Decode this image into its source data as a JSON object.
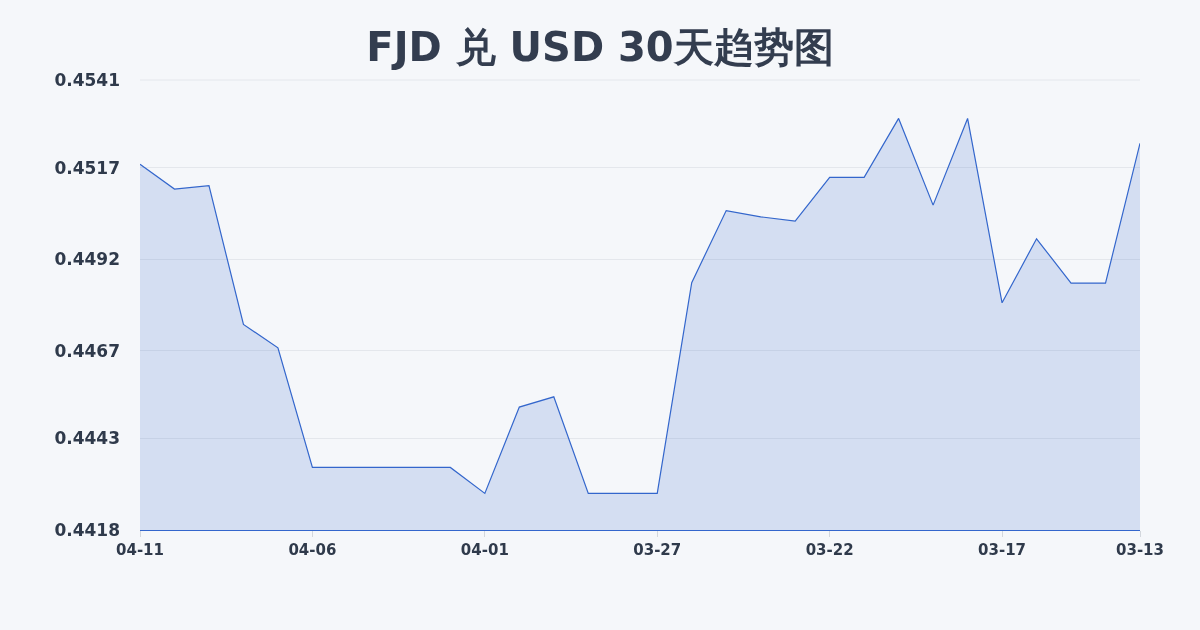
{
  "chart_data": {
    "type": "area",
    "title": "FJD 兑 USD 30天趋势图",
    "categories": [
      "04-11",
      null,
      null,
      null,
      null,
      "04-06",
      null,
      null,
      null,
      null,
      "04-01",
      null,
      null,
      null,
      null,
      "03-27",
      null,
      null,
      null,
      null,
      "03-22",
      null,
      null,
      null,
      null,
      "03-17",
      null,
      null,
      null,
      "03-13"
    ],
    "values": [
      0.4518,
      0.45112,
      0.45121,
      0.44742,
      0.44678,
      0.44351,
      0.44351,
      0.44351,
      0.44351,
      0.44351,
      0.4428,
      0.44516,
      0.44544,
      0.4428,
      0.4428,
      0.4428,
      0.44856,
      0.45053,
      0.45036,
      0.45024,
      0.45144,
      0.45144,
      0.45305,
      0.45068,
      0.45305,
      0.44801,
      0.44976,
      0.44855,
      0.44855,
      0.45237
    ],
    "color": "#3366cc",
    "ylim": [
      0.4418,
      0.4541
    ],
    "yticks": [
      0.4418,
      0.4443,
      0.4467,
      0.4492,
      0.4517,
      0.4541
    ],
    "grid": "y"
  }
}
